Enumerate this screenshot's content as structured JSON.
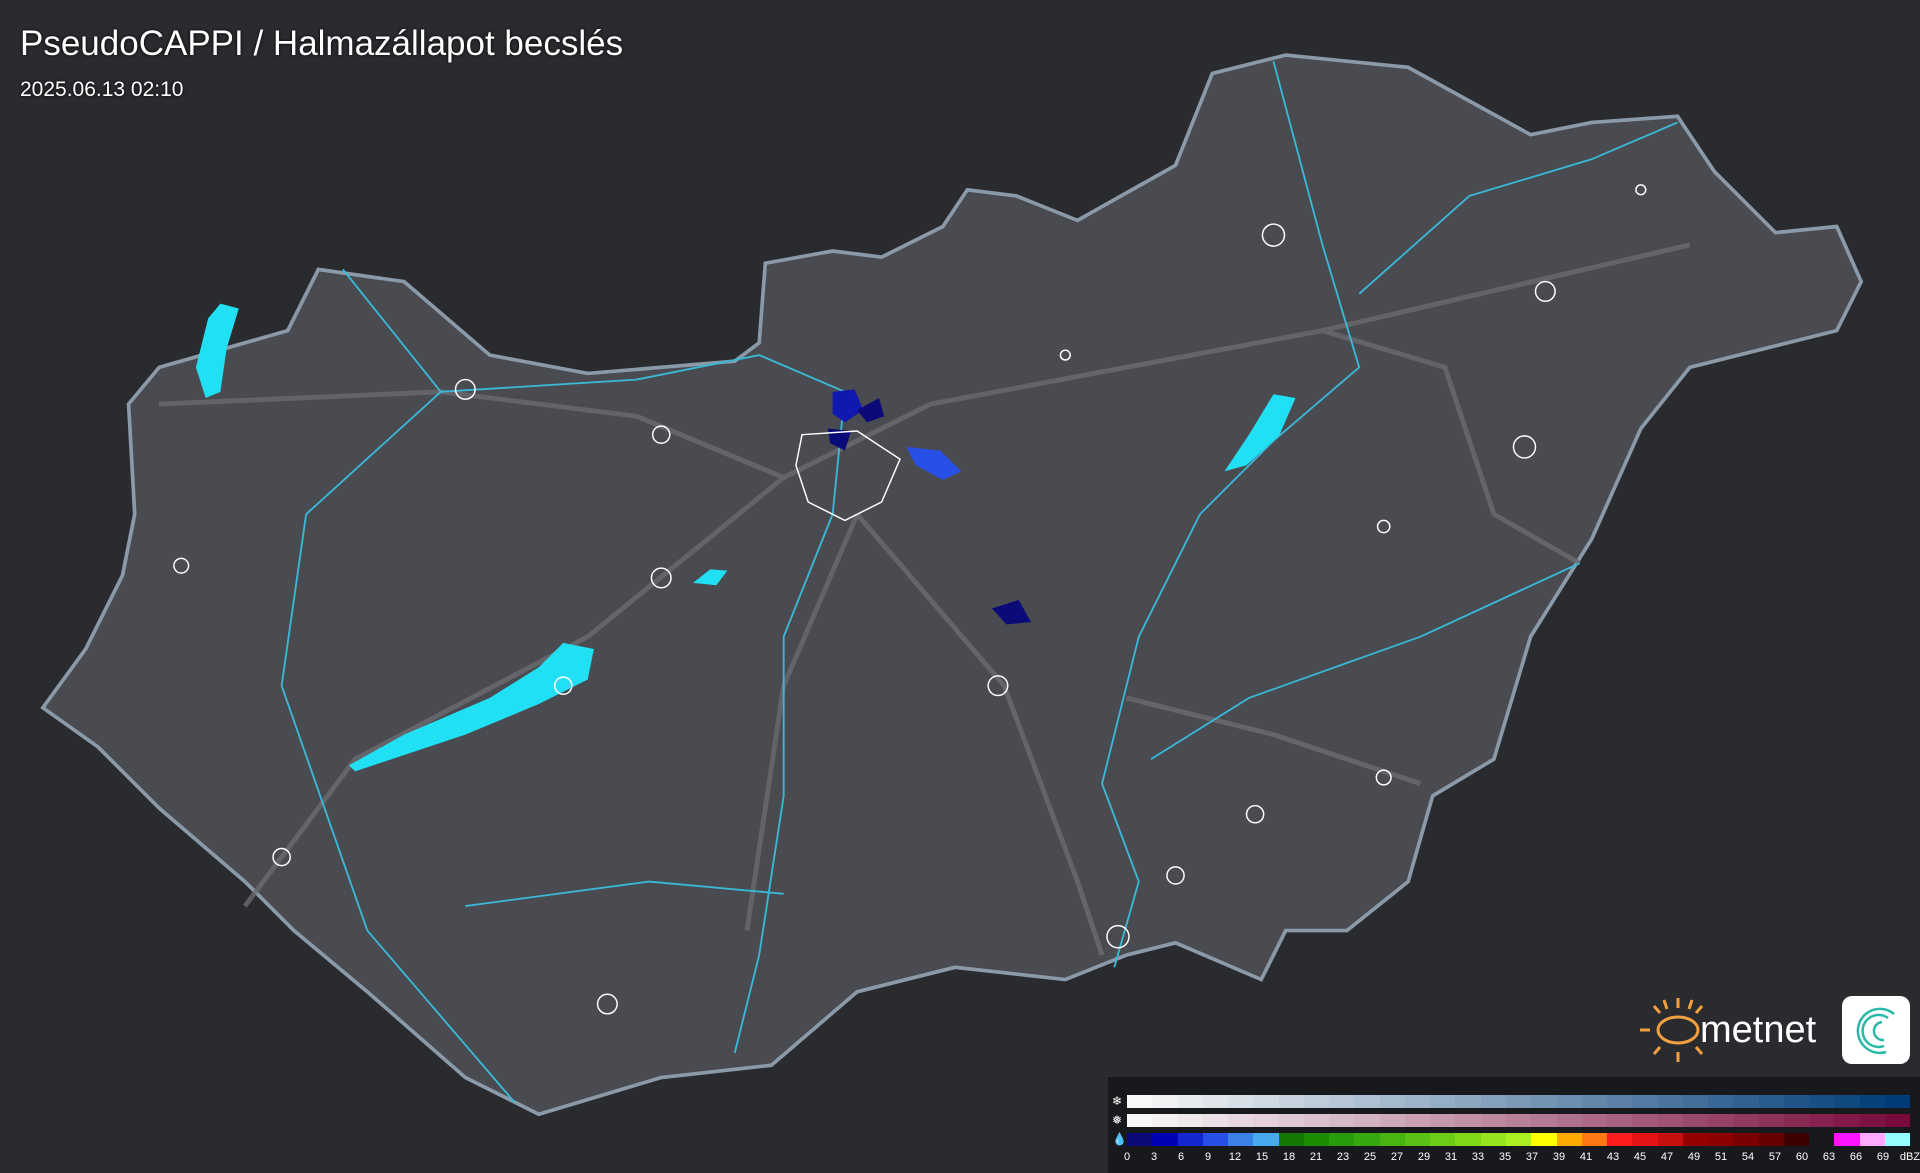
{
  "header": {
    "title": "PseudoCAPPI  / Halmazállapot becslés",
    "datetime": "2025.06.13 02:10"
  },
  "logo": {
    "text": "metnet",
    "sun_color": "#f0a040"
  },
  "colors": {
    "background": "#2a2b2f",
    "country_fill": "#4a4b50",
    "border": "#8a9aa8",
    "river": "#3ab8d8",
    "lake": "#22e0f4",
    "settlement": "#ffffff",
    "road": "#6a6b70"
  },
  "legend": {
    "unit": "dBZ",
    "labels": [
      "0",
      "3",
      "6",
      "9",
      "12",
      "15",
      "18",
      "21",
      "23",
      "25",
      "27",
      "29",
      "31",
      "33",
      "35",
      "37",
      "39",
      "41",
      "43",
      "45",
      "47",
      "49",
      "51",
      "54",
      "57",
      "60",
      "63",
      "66",
      "69"
    ],
    "snow_icon": "snowflake-icon",
    "mixed_icon": "sleet-icon",
    "rain_icon": "raindrop-icon",
    "snow_colors": [
      "#f8f8f8",
      "#003c78"
    ],
    "mixed_colors": [
      "#f8f8f8",
      "#780a3c"
    ],
    "rain_colors": [
      "#0a0a78",
      "#0000b4",
      "#1428d2",
      "#2850e6",
      "#3c82e6",
      "#46aaf0",
      "#147800",
      "#1e8c00",
      "#289c0a",
      "#36a80e",
      "#48b412",
      "#5ac014",
      "#6ccc16",
      "#82d818",
      "#96e41e",
      "#aaf020",
      "#ffff00",
      "#ffaa00",
      "#ff7814",
      "#ff1e1e",
      "#e61414",
      "#c80f0f",
      "#960000",
      "#8c0000",
      "#780000",
      "#640000",
      "#3c0000",
      "#18191c",
      "#ff14ff",
      "#ffaaff",
      "#96ffff"
    ]
  }
}
